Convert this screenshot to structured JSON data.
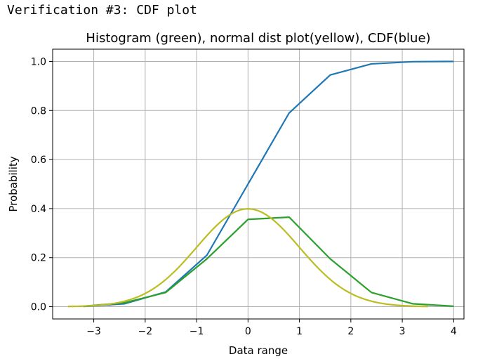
{
  "cell": {
    "output_text": "Verification #3: CDF plot"
  },
  "chart_data": {
    "type": "line",
    "title": "Histogram (green), normal dist plot(yellow), CDF(blue)",
    "xlabel": "Data range",
    "ylabel": "Probability",
    "xlim": [
      -3.8,
      4.2
    ],
    "ylim": [
      -0.05,
      1.05
    ],
    "xticks": [
      -3,
      -2,
      -1,
      0,
      1,
      2,
      3,
      4
    ],
    "xtick_labels": [
      "−3",
      "−2",
      "−1",
      "0",
      "1",
      "2",
      "3",
      "4"
    ],
    "yticks": [
      0.0,
      0.2,
      0.4,
      0.6,
      0.8,
      1.0
    ],
    "ytick_labels": [
      "0.0",
      "0.2",
      "0.4",
      "0.6",
      "0.8",
      "1.0"
    ],
    "grid": true,
    "legend": false,
    "series": [
      {
        "color": "#1f77b4",
        "x": [
          -3.2,
          -2.4,
          -1.6,
          -0.8,
          0.0,
          0.8,
          1.6,
          2.4,
          3.2,
          4.0
        ],
        "y": [
          0.001,
          0.012,
          0.06,
          0.21,
          0.5,
          0.79,
          0.945,
          0.99,
          0.999,
          1.0
        ]
      },
      {
        "color": "#2ca02c",
        "x": [
          -3.2,
          -2.4,
          -1.6,
          -0.8,
          0.0,
          0.8,
          1.6,
          2.4,
          3.2,
          4.0
        ],
        "y": [
          0.002,
          0.016,
          0.058,
          0.195,
          0.356,
          0.365,
          0.195,
          0.058,
          0.012,
          0.002
        ]
      },
      {
        "color": "#bcbd22",
        "normal_pdf": {
          "mean": 0,
          "std": 1,
          "x_range": [
            -3.5,
            3.5
          ],
          "points": 141
        }
      }
    ]
  }
}
